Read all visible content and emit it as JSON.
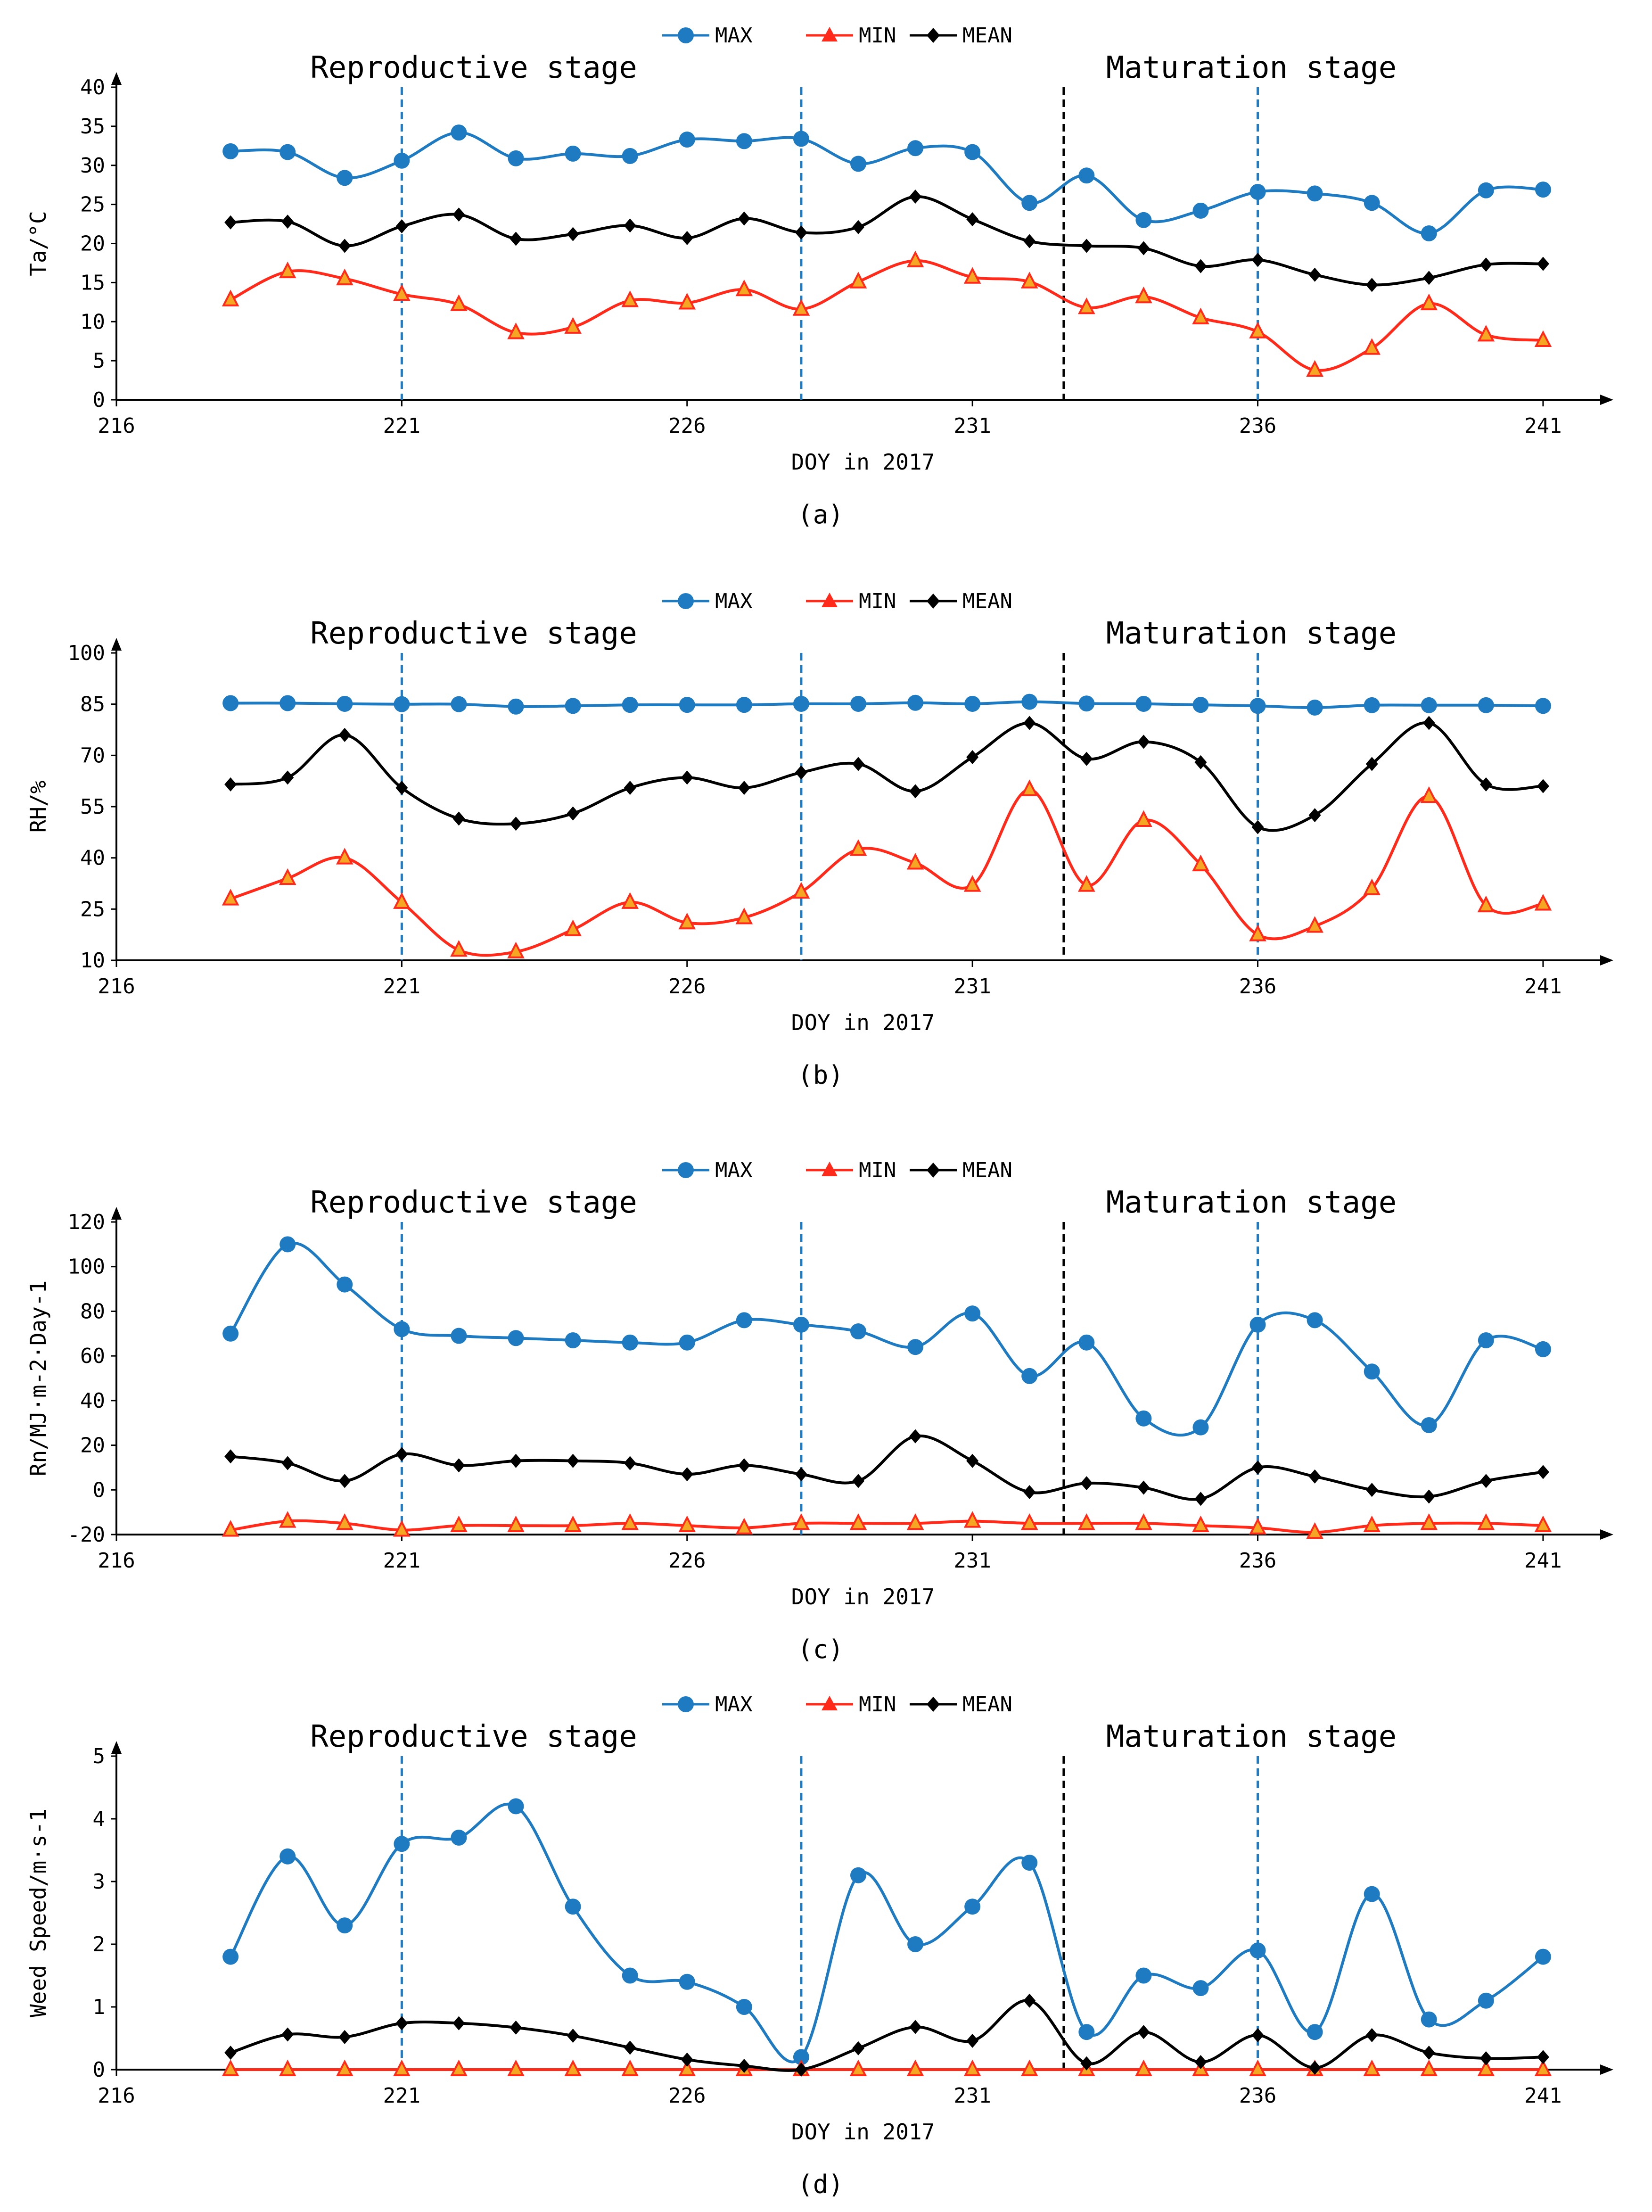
{
  "chart_data": [
    {
      "type": "line",
      "caption": "(a)",
      "xlabel": "DOY in 2017",
      "ylabel": "Ta/°C",
      "xlim": [
        216,
        242
      ],
      "xticks": [
        216,
        221,
        226,
        231,
        236,
        241
      ],
      "ylim": [
        0,
        40
      ],
      "yticks": [
        0,
        5,
        10,
        15,
        20,
        25,
        30,
        35,
        40
      ],
      "stage_labels": [
        "Reproductive stage",
        "Maturation stage"
      ],
      "stage_dividers": [
        {
          "x": 221,
          "color": "#1f7bc1"
        },
        {
          "x": 228,
          "color": "#1f7bc1"
        },
        {
          "x": 232.6,
          "color": "#000000"
        },
        {
          "x": 236,
          "color": "#1f7bc1"
        }
      ],
      "x": [
        218,
        219,
        220,
        221,
        222,
        223,
        224,
        225,
        226,
        227,
        228,
        229,
        230,
        231,
        232,
        233,
        234,
        235,
        236,
        237,
        238,
        239,
        240,
        241
      ],
      "series": [
        {
          "name": "MAX",
          "color": "#1f7bc1",
          "marker": "circle",
          "values": [
            31.8,
            31.7,
            28.4,
            30.6,
            34.2,
            30.9,
            31.5,
            31.2,
            33.3,
            33.1,
            33.4,
            30.2,
            32.2,
            31.7,
            25.2,
            28.7,
            23.0,
            24.2,
            26.6,
            26.4,
            25.2,
            21.3,
            26.8,
            26.9
          ]
        },
        {
          "name": "MIN",
          "color": "#ff2a1a",
          "marker": "triangle",
          "values": [
            12.8,
            16.4,
            15.5,
            13.5,
            12.2,
            8.6,
            9.3,
            12.7,
            12.4,
            14.1,
            11.6,
            15.1,
            17.8,
            15.7,
            15.1,
            11.8,
            13.2,
            10.5,
            8.7,
            3.8,
            6.6,
            12.3,
            8.3,
            7.6
          ]
        },
        {
          "name": "MEAN",
          "color": "#000000",
          "marker": "diamond",
          "values": [
            22.7,
            22.8,
            19.7,
            22.2,
            23.7,
            20.6,
            21.2,
            22.3,
            20.7,
            23.2,
            21.4,
            22.1,
            26.0,
            23.1,
            20.3,
            19.7,
            19.4,
            17.1,
            17.9,
            16.0,
            14.7,
            15.6,
            17.3,
            17.4
          ]
        }
      ]
    },
    {
      "type": "line",
      "caption": "(b)",
      "xlabel": "DOY in 2017",
      "ylabel": "RH/%",
      "xlim": [
        216,
        242
      ],
      "xticks": [
        216,
        221,
        226,
        231,
        236,
        241
      ],
      "ylim": [
        10,
        100
      ],
      "yticks": [
        10,
        25,
        40,
        55,
        70,
        85,
        100
      ],
      "stage_labels": [
        "Reproductive stage",
        "Maturation stage"
      ],
      "stage_dividers": [
        {
          "x": 221,
          "color": "#1f7bc1"
        },
        {
          "x": 228,
          "color": "#1f7bc1"
        },
        {
          "x": 232.6,
          "color": "#000000"
        },
        {
          "x": 236,
          "color": "#1f7bc1"
        }
      ],
      "x": [
        218,
        219,
        220,
        221,
        222,
        223,
        224,
        225,
        226,
        227,
        228,
        229,
        230,
        231,
        232,
        233,
        234,
        235,
        236,
        237,
        238,
        239,
        240,
        241
      ],
      "series": [
        {
          "name": "MAX",
          "color": "#1f7bc1",
          "marker": "circle",
          "values": [
            85.3,
            85.3,
            85.1,
            85.0,
            85.0,
            84.3,
            84.5,
            84.8,
            84.8,
            84.8,
            85.1,
            85.1,
            85.4,
            85.1,
            85.7,
            85.2,
            85.1,
            84.8,
            84.5,
            84.0,
            84.7,
            84.7,
            84.7,
            84.5
          ]
        },
        {
          "name": "MIN",
          "color": "#ff2a1a",
          "marker": "triangle",
          "values": [
            28,
            34,
            40,
            27,
            13,
            12.5,
            19,
            27,
            21,
            22.5,
            30,
            42.5,
            38.5,
            32,
            60,
            32,
            51,
            38,
            17.5,
            20,
            31,
            58,
            26,
            26.5
          ]
        },
        {
          "name": "MEAN",
          "color": "#000000",
          "marker": "diamond",
          "values": [
            61.5,
            63.5,
            76,
            60.5,
            51.5,
            50,
            53,
            60.5,
            63.5,
            60.5,
            65,
            67.5,
            59.5,
            69.5,
            79.5,
            69,
            74,
            68,
            49,
            52.5,
            67.5,
            79.5,
            61.5,
            61
          ]
        }
      ]
    },
    {
      "type": "line",
      "caption": "(c)",
      "xlabel": "DOY in 2017",
      "ylabel": "Rn/MJ·m-2·Day-1",
      "xlim": [
        216,
        242
      ],
      "xticks": [
        216,
        221,
        226,
        231,
        236,
        241
      ],
      "ylim": [
        -20,
        120
      ],
      "yticks": [
        -20,
        0,
        20,
        40,
        60,
        80,
        100,
        120
      ],
      "stage_labels": [
        "Reproductive stage",
        "Maturation stage"
      ],
      "stage_dividers": [
        {
          "x": 221,
          "color": "#1f7bc1"
        },
        {
          "x": 228,
          "color": "#1f7bc1"
        },
        {
          "x": 232.6,
          "color": "#000000"
        },
        {
          "x": 236,
          "color": "#1f7bc1"
        }
      ],
      "x": [
        218,
        219,
        220,
        221,
        222,
        223,
        224,
        225,
        226,
        227,
        228,
        229,
        230,
        231,
        232,
        233,
        234,
        235,
        236,
        237,
        238,
        239,
        240,
        241
      ],
      "series": [
        {
          "name": "MAX",
          "color": "#1f7bc1",
          "marker": "circle",
          "values": [
            70,
            110,
            92,
            72,
            69,
            68,
            67,
            66,
            66,
            76,
            74,
            71,
            64,
            79,
            51,
            66,
            32,
            28,
            74,
            76,
            53,
            29,
            67,
            63
          ]
        },
        {
          "name": "MIN",
          "color": "#ff2a1a",
          "marker": "triangle",
          "values": [
            -18,
            -14,
            -15,
            -18,
            -16,
            -16,
            -16,
            -15,
            -16,
            -17,
            -15,
            -15,
            -15,
            -14,
            -15,
            -15,
            -15,
            -16,
            -17,
            -19,
            -16,
            -15,
            -15,
            -16
          ]
        },
        {
          "name": "MEAN",
          "color": "#000000",
          "marker": "diamond",
          "values": [
            15,
            12,
            4,
            16,
            11,
            13,
            13,
            12,
            7,
            11,
            7,
            4,
            24,
            13,
            -1,
            3,
            1,
            -4,
            10,
            6,
            0,
            -3,
            4,
            8
          ]
        }
      ]
    },
    {
      "type": "line",
      "caption": "(d)",
      "xlabel": "DOY in 2017",
      "ylabel": "Weed Speed/m·s-1",
      "xlim": [
        216,
        242
      ],
      "xticks": [
        216,
        221,
        226,
        231,
        236,
        241
      ],
      "ylim": [
        0,
        5
      ],
      "yticks": [
        0,
        1,
        2,
        3,
        4,
        5
      ],
      "stage_labels": [
        "Reproductive stage",
        "Maturation stage"
      ],
      "stage_dividers": [
        {
          "x": 221,
          "color": "#1f7bc1"
        },
        {
          "x": 228,
          "color": "#1f7bc1"
        },
        {
          "x": 232.6,
          "color": "#000000"
        },
        {
          "x": 236,
          "color": "#1f7bc1"
        }
      ],
      "x": [
        218,
        219,
        220,
        221,
        222,
        223,
        224,
        225,
        226,
        227,
        228,
        229,
        230,
        231,
        232,
        233,
        234,
        235,
        236,
        237,
        238,
        239,
        240,
        241
      ],
      "series": [
        {
          "name": "MAX",
          "color": "#1f7bc1",
          "marker": "circle",
          "values": [
            1.8,
            3.4,
            2.3,
            3.6,
            3.7,
            4.2,
            2.6,
            1.5,
            1.4,
            1.0,
            0.2,
            3.1,
            2.0,
            2.6,
            3.3,
            0.6,
            1.5,
            1.3,
            1.9,
            0.6,
            2.8,
            0.8,
            1.1,
            1.8
          ]
        },
        {
          "name": "MIN",
          "color": "#ff2a1a",
          "marker": "triangle",
          "values": [
            0,
            0,
            0,
            0,
            0,
            0,
            0,
            0,
            0,
            0,
            0,
            0,
            0,
            0,
            0,
            0,
            0,
            0,
            0,
            0,
            0,
            0,
            0,
            0
          ]
        },
        {
          "name": "MEAN",
          "color": "#000000",
          "marker": "diamond",
          "values": [
            0.27,
            0.56,
            0.52,
            0.74,
            0.74,
            0.67,
            0.54,
            0.35,
            0.16,
            0.06,
            0.0,
            0.34,
            0.68,
            0.46,
            1.1,
            0.1,
            0.6,
            0.12,
            0.55,
            0.03,
            0.55,
            0.27,
            0.18,
            0.2
          ]
        }
      ]
    }
  ]
}
